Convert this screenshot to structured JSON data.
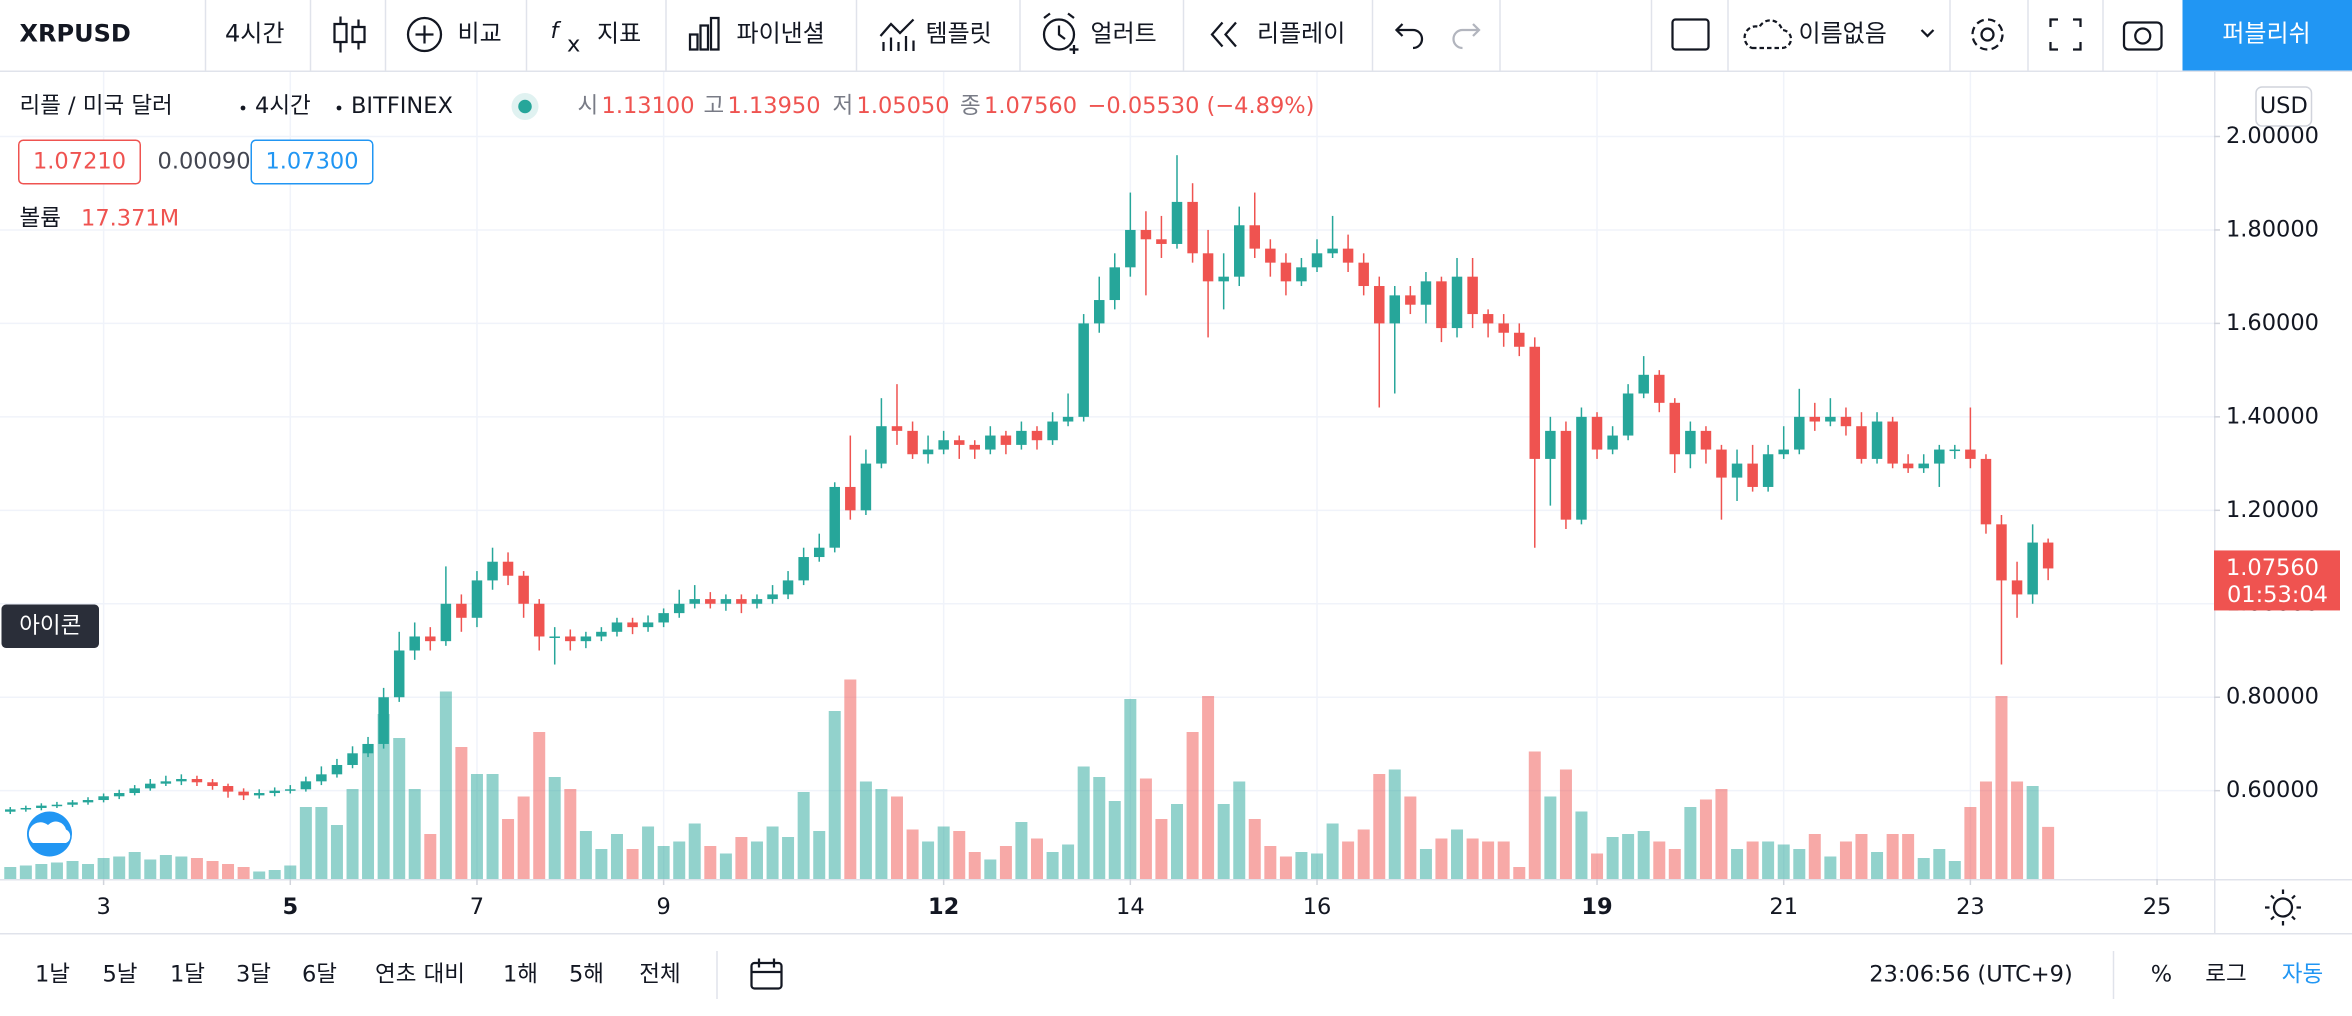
{
  "toolbar": {
    "symbol": "XRPUSD",
    "interval": "4시간",
    "compare": "비교",
    "indicators": "지표",
    "financials": "파이낸셜",
    "templates": "템플릿",
    "alert": "얼러트",
    "replay": "리플레이",
    "layout_name": "이름없음",
    "publish": "퍼블리쉬"
  },
  "legend": {
    "title": "리플 / 미국 달러",
    "interval": "4시간",
    "exchange": "BITFINEX",
    "open_label": "시",
    "open": "1.13100",
    "high_label": "고",
    "high": "1.13950",
    "low_label": "저",
    "low": "1.05050",
    "close_label": "종",
    "close": "1.07560",
    "change": "−0.05530 (−4.89%)",
    "bid": "1.07210",
    "spread": "0.00090",
    "ask": "1.07300",
    "volume_label": "볼륨",
    "volume": "17.371M"
  },
  "currency": "USD",
  "tooltip": "아이콘",
  "price_tag": {
    "price": "1.07560",
    "countdown": "01:53:04"
  },
  "chart_data": {
    "type": "candlestick",
    "up_color": "#26a69a",
    "down_color": "#ef5350",
    "grid": true,
    "xlim": [
      1.89,
      25.61
    ],
    "xticks": [
      3,
      5,
      7,
      9,
      12,
      14,
      16,
      19,
      21,
      23,
      25
    ],
    "xticks_major": [
      5,
      12,
      19
    ],
    "ylim": [
      0.411,
      2.138
    ],
    "yticks": [
      {
        "value": 0.6,
        "label": "0.60000"
      },
      {
        "value": 0.8,
        "label": "0.80000"
      },
      {
        "value": 1.0,
        "label": "1.00000"
      },
      {
        "value": 1.2,
        "label": "1.20000"
      },
      {
        "value": 1.4,
        "label": "1.40000"
      },
      {
        "value": 1.6,
        "label": "1.60000"
      },
      {
        "value": 1.8,
        "label": "1.80000"
      },
      {
        "value": 2.0,
        "label": "2.00000"
      }
    ],
    "vlim": [
      0,
      269
    ],
    "x": [
      2,
      2.167,
      2.333,
      2.5,
      2.667,
      2.833,
      3,
      3.167,
      3.333,
      3.5,
      3.667,
      3.833,
      4,
      4.167,
      4.333,
      4.5,
      4.667,
      4.833,
      5,
      5.167,
      5.333,
      5.5,
      5.667,
      5.833,
      6,
      6.167,
      6.333,
      6.5,
      6.667,
      6.833,
      7,
      7.167,
      7.333,
      7.5,
      7.667,
      7.833,
      8,
      8.167,
      8.333,
      8.5,
      8.667,
      8.833,
      9,
      9.167,
      9.333,
      9.5,
      9.667,
      9.833,
      10,
      10.167,
      10.333,
      10.5,
      10.667,
      10.833,
      11,
      11.167,
      11.333,
      11.5,
      11.667,
      11.833,
      12,
      12.167,
      12.333,
      12.5,
      12.667,
      12.833,
      13,
      13.167,
      13.333,
      13.5,
      13.667,
      13.833,
      14,
      14.167,
      14.333,
      14.5,
      14.667,
      14.833,
      15,
      15.167,
      15.333,
      15.5,
      15.667,
      15.833,
      16,
      16.167,
      16.333,
      16.5,
      16.667,
      16.833,
      17,
      17.167,
      17.333,
      17.5,
      17.667,
      17.833,
      18,
      18.167,
      18.333,
      18.5,
      18.667,
      18.833,
      19,
      19.167,
      19.333,
      19.5,
      19.667,
      19.833,
      20,
      20.167,
      20.333,
      20.5,
      20.667,
      20.833,
      21,
      21.167,
      21.333,
      21.5,
      21.667,
      21.833,
      22,
      22.167,
      22.333,
      22.5,
      22.667,
      22.833,
      23,
      23.167,
      23.333,
      23.5,
      23.667,
      23.833
    ],
    "open": [
      0.555,
      0.56,
      0.563,
      0.568,
      0.57,
      0.575,
      0.58,
      0.588,
      0.595,
      0.605,
      0.615,
      0.62,
      0.625,
      0.618,
      0.61,
      0.598,
      0.59,
      0.595,
      0.6,
      0.603,
      0.62,
      0.635,
      0.655,
      0.68,
      0.7,
      0.8,
      0.9,
      0.93,
      0.92,
      1.0,
      0.97,
      1.05,
      1.09,
      1.06,
      1.0,
      0.93,
      0.93,
      0.92,
      0.93,
      0.94,
      0.96,
      0.95,
      0.96,
      0.98,
      1.0,
      1.01,
      1.0,
      1.01,
      1.0,
      1.01,
      1.02,
      1.05,
      1.1,
      1.12,
      1.25,
      1.2,
      1.3,
      1.38,
      1.37,
      1.32,
      1.33,
      1.35,
      1.34,
      1.33,
      1.36,
      1.34,
      1.37,
      1.35,
      1.39,
      1.4,
      1.6,
      1.65,
      1.72,
      1.8,
      1.78,
      1.77,
      1.86,
      1.75,
      1.69,
      1.7,
      1.81,
      1.76,
      1.73,
      1.69,
      1.72,
      1.75,
      1.76,
      1.73,
      1.68,
      1.6,
      1.66,
      1.64,
      1.69,
      1.59,
      1.7,
      1.62,
      1.6,
      1.58,
      1.55,
      1.31,
      1.37,
      1.18,
      1.4,
      1.33,
      1.36,
      1.45,
      1.49,
      1.43,
      1.32,
      1.37,
      1.33,
      1.27,
      1.3,
      1.25,
      1.32,
      1.33,
      1.4,
      1.39,
      1.4,
      1.38,
      1.31,
      1.39,
      1.3,
      1.29,
      1.3,
      1.33,
      1.33,
      1.31,
      1.17,
      1.05,
      1.02,
      1.131
    ],
    "high": [
      0.565,
      0.568,
      0.573,
      0.576,
      0.58,
      0.586,
      0.594,
      0.602,
      0.612,
      0.625,
      0.632,
      0.635,
      0.632,
      0.625,
      0.615,
      0.605,
      0.603,
      0.607,
      0.612,
      0.63,
      0.652,
      0.668,
      0.695,
      0.715,
      0.82,
      0.94,
      0.96,
      0.95,
      1.08,
      1.02,
      1.07,
      1.12,
      1.11,
      1.07,
      1.01,
      0.95,
      0.945,
      0.94,
      0.95,
      0.97,
      0.97,
      0.975,
      0.99,
      1.03,
      1.04,
      1.025,
      1.02,
      1.02,
      1.02,
      1.04,
      1.07,
      1.12,
      1.15,
      1.26,
      1.36,
      1.33,
      1.44,
      1.47,
      1.39,
      1.36,
      1.37,
      1.36,
      1.35,
      1.38,
      1.37,
      1.39,
      1.38,
      1.41,
      1.45,
      1.62,
      1.7,
      1.75,
      1.88,
      1.84,
      1.83,
      1.96,
      1.9,
      1.8,
      1.75,
      1.85,
      1.88,
      1.78,
      1.75,
      1.74,
      1.78,
      1.83,
      1.79,
      1.75,
      1.7,
      1.68,
      1.68,
      1.71,
      1.7,
      1.74,
      1.74,
      1.63,
      1.62,
      1.6,
      1.57,
      1.4,
      1.39,
      1.42,
      1.41,
      1.38,
      1.47,
      1.53,
      1.5,
      1.44,
      1.39,
      1.38,
      1.34,
      1.33,
      1.34,
      1.34,
      1.38,
      1.46,
      1.43,
      1.44,
      1.42,
      1.41,
      1.41,
      1.4,
      1.32,
      1.32,
      1.34,
      1.34,
      1.42,
      1.32,
      1.19,
      1.09,
      1.17,
      1.1395
    ],
    "low": [
      0.55,
      0.555,
      0.558,
      0.563,
      0.565,
      0.57,
      0.575,
      0.582,
      0.59,
      0.6,
      0.61,
      0.612,
      0.61,
      0.602,
      0.585,
      0.58,
      0.583,
      0.588,
      0.594,
      0.598,
      0.612,
      0.628,
      0.648,
      0.672,
      0.69,
      0.79,
      0.88,
      0.9,
      0.91,
      0.94,
      0.95,
      1.03,
      1.04,
      0.97,
      0.9,
      0.87,
      0.9,
      0.905,
      0.92,
      0.93,
      0.935,
      0.94,
      0.95,
      0.97,
      0.99,
      0.99,
      0.985,
      0.98,
      0.99,
      1.0,
      1.01,
      1.04,
      1.09,
      1.11,
      1.18,
      1.19,
      1.29,
      1.34,
      1.31,
      1.3,
      1.32,
      1.31,
      1.31,
      1.32,
      1.32,
      1.33,
      1.33,
      1.34,
      1.38,
      1.39,
      1.58,
      1.63,
      1.7,
      1.66,
      1.74,
      1.76,
      1.73,
      1.57,
      1.63,
      1.68,
      1.74,
      1.7,
      1.66,
      1.68,
      1.71,
      1.74,
      1.71,
      1.66,
      1.42,
      1.45,
      1.62,
      1.6,
      1.56,
      1.57,
      1.59,
      1.57,
      1.55,
      1.53,
      1.12,
      1.21,
      1.16,
      1.17,
      1.31,
      1.32,
      1.35,
      1.44,
      1.41,
      1.28,
      1.29,
      1.3,
      1.18,
      1.22,
      1.24,
      1.24,
      1.31,
      1.32,
      1.37,
      1.38,
      1.36,
      1.3,
      1.3,
      1.29,
      1.28,
      1.28,
      1.25,
      1.31,
      1.29,
      1.15,
      0.87,
      0.97,
      1.0,
      1.0505
    ],
    "close": [
      0.56,
      0.563,
      0.568,
      0.57,
      0.575,
      0.58,
      0.588,
      0.595,
      0.605,
      0.615,
      0.62,
      0.625,
      0.618,
      0.61,
      0.598,
      0.59,
      0.595,
      0.6,
      0.603,
      0.62,
      0.635,
      0.655,
      0.68,
      0.7,
      0.8,
      0.9,
      0.93,
      0.92,
      1.0,
      0.97,
      1.05,
      1.09,
      1.06,
      1.0,
      0.93,
      0.93,
      0.92,
      0.93,
      0.94,
      0.96,
      0.95,
      0.96,
      0.98,
      1.0,
      1.01,
      1.0,
      1.01,
      1.0,
      1.01,
      1.02,
      1.05,
      1.1,
      1.12,
      1.25,
      1.2,
      1.3,
      1.38,
      1.37,
      1.32,
      1.33,
      1.35,
      1.34,
      1.33,
      1.36,
      1.34,
      1.37,
      1.35,
      1.39,
      1.4,
      1.6,
      1.65,
      1.72,
      1.8,
      1.78,
      1.77,
      1.86,
      1.75,
      1.69,
      1.7,
      1.81,
      1.76,
      1.73,
      1.69,
      1.72,
      1.75,
      1.76,
      1.73,
      1.68,
      1.6,
      1.66,
      1.64,
      1.69,
      1.59,
      1.7,
      1.62,
      1.6,
      1.58,
      1.55,
      1.31,
      1.37,
      1.18,
      1.4,
      1.33,
      1.36,
      1.45,
      1.49,
      1.43,
      1.32,
      1.37,
      1.33,
      1.27,
      1.3,
      1.25,
      1.32,
      1.33,
      1.4,
      1.39,
      1.4,
      1.38,
      1.31,
      1.39,
      1.3,
      1.29,
      1.3,
      1.33,
      1.33,
      1.31,
      1.17,
      1.05,
      1.02,
      1.131,
      1.0756
    ],
    "volume": [
      4,
      4.5,
      5,
      5.5,
      6,
      5,
      7,
      7.5,
      9,
      6.5,
      8,
      7.5,
      7,
      6,
      5,
      4,
      2.5,
      3,
      4.5,
      24,
      24,
      18,
      30,
      45,
      55,
      47,
      30,
      15,
      62.5,
      44,
      35,
      35,
      20,
      27.5,
      49,
      34,
      30,
      16,
      10,
      15,
      10,
      17.5,
      11,
      12.5,
      18.5,
      11,
      8.5,
      14,
      12.5,
      17.5,
      14,
      29,
      16,
      56,
      66.5,
      32.5,
      30,
      27.5,
      16.5,
      12.5,
      17.5,
      16,
      9,
      6.5,
      11,
      19,
      13.5,
      9,
      11.5,
      37.5,
      34,
      26,
      60,
      33.5,
      20,
      25,
      49,
      61,
      25,
      32.5,
      20,
      11,
      7.5,
      9,
      8.5,
      18.5,
      12.5,
      16.5,
      35,
      36.5,
      27.5,
      10,
      13.5,
      16.5,
      13.5,
      12.5,
      12.5,
      4,
      42.5,
      27.5,
      36.5,
      22.5,
      8.5,
      14,
      15,
      16,
      12.5,
      10,
      24,
      26.5,
      30,
      10,
      12.5,
      12.5,
      11.5,
      10,
      15,
      7.5,
      12.5,
      15,
      9,
      15,
      15,
      7,
      10,
      6,
      24,
      32.5,
      61,
      32.5,
      31,
      17.371
    ]
  },
  "bottom_bar": {
    "ranges": [
      "1날",
      "5날",
      "1달",
      "3달",
      "6달",
      "연초 대비",
      "1해",
      "5해",
      "전체"
    ],
    "time": "23:06:56 (UTC+9)",
    "percent": "%",
    "log": "로그",
    "auto": "자동"
  }
}
